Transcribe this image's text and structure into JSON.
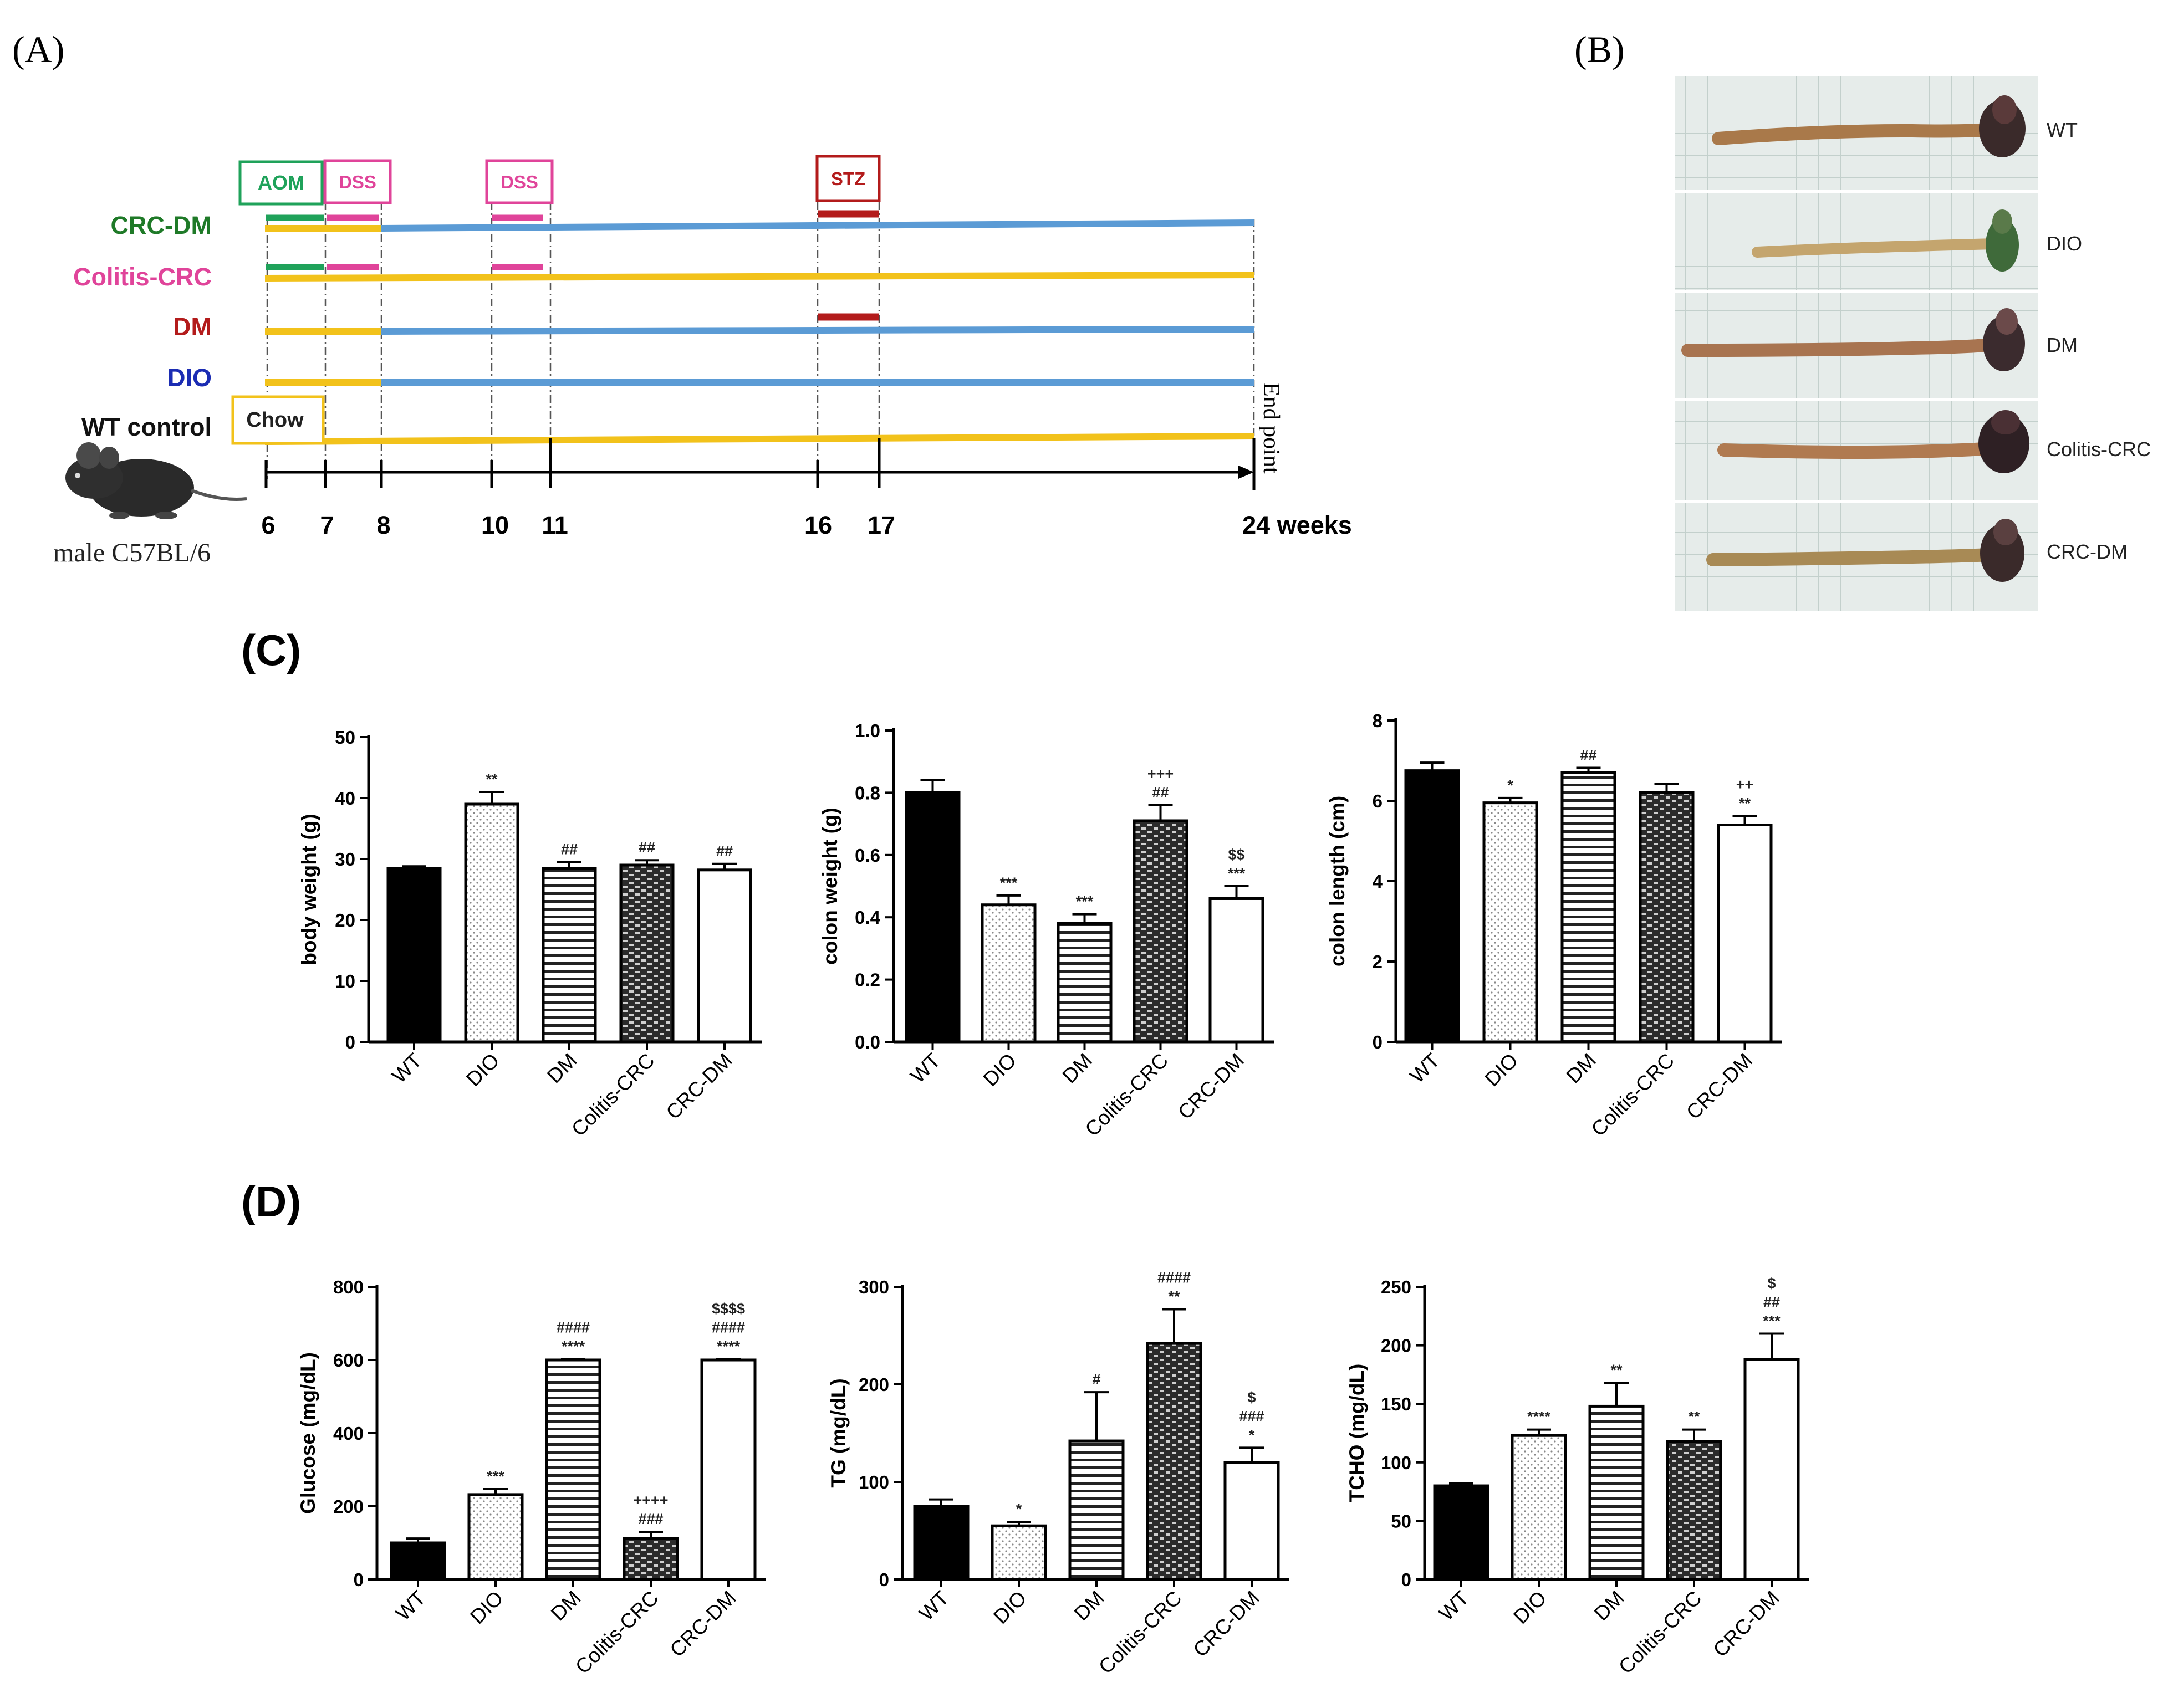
{
  "panel_labels": {
    "a": "(A)",
    "b": "(B)",
    "c": "(C)",
    "d": "(D)"
  },
  "timeline": {
    "weeks": [
      "6",
      "7",
      "8",
      "10",
      "11",
      "16",
      "17"
    ],
    "end_week": "24 weeks",
    "end_label": "End point",
    "mouse_label": "male C57BL/6",
    "groups": [
      {
        "name": "CRC-DM",
        "color": "#1f7a28"
      },
      {
        "name": "Colitis-CRC",
        "color": "#e0449a"
      },
      {
        "name": "DM",
        "color": "#b31b1b"
      },
      {
        "name": "DIO",
        "color": "#1b2cb3"
      },
      {
        "name": "WT control",
        "color": "#111111"
      }
    ],
    "treatments": {
      "aom": "AOM",
      "dss1": "DSS",
      "dss2": "DSS",
      "stz": "STZ",
      "chow": "Chow"
    },
    "colors": {
      "chow": "#f2c21b",
      "hfd": "#5b9bd5",
      "aom": "#1fa25a",
      "dss": "#e0449a",
      "stz": "#b31b1b"
    }
  },
  "photo_labels": [
    "WT",
    "DIO",
    "DM",
    "Colitis-CRC",
    "CRC-DM"
  ],
  "chart_data": [
    {
      "type": "bar",
      "panel": "C",
      "ylabel": "body weight (g)",
      "ylim": [
        0,
        50
      ],
      "ticks": [
        "0",
        "10",
        "20",
        "30",
        "40",
        "50"
      ],
      "categories": [
        "WT",
        "DIO",
        "DM",
        "Colitis-CRC",
        "CRC-DM"
      ],
      "values": [
        28.5,
        39,
        28.5,
        29,
        28.2
      ],
      "errors": [
        0.3,
        2,
        1,
        0.8,
        1
      ],
      "annotations": [
        [],
        [
          "**"
        ],
        [
          "##"
        ],
        [
          "##"
        ],
        [
          "##"
        ]
      ]
    },
    {
      "type": "bar",
      "panel": "C",
      "ylabel": "colon weight (g)",
      "ylim": [
        0,
        1.0
      ],
      "ticks": [
        "0.0",
        "0.2",
        "0.4",
        "0.6",
        "0.8",
        "1.0"
      ],
      "categories": [
        "WT",
        "DIO",
        "DM",
        "Colitis-CRC",
        "CRC-DM"
      ],
      "values": [
        0.8,
        0.44,
        0.38,
        0.71,
        0.46
      ],
      "errors": [
        0.04,
        0.03,
        0.03,
        0.05,
        0.04
      ],
      "annotations": [
        [],
        [
          "***"
        ],
        [
          "***"
        ],
        [
          "+++",
          "##"
        ],
        [
          "$$",
          "***"
        ]
      ]
    },
    {
      "type": "bar",
      "panel": "C",
      "ylabel": "colon length (cm)",
      "ylim": [
        0,
        8
      ],
      "ticks": [
        "0",
        "2",
        "4",
        "6",
        "8"
      ],
      "categories": [
        "WT",
        "DIO",
        "DM",
        "Colitis-CRC",
        "CRC-DM"
      ],
      "values": [
        6.75,
        5.95,
        6.7,
        6.2,
        5.4
      ],
      "errors": [
        0.2,
        0.12,
        0.12,
        0.22,
        0.22
      ],
      "annotations": [
        [],
        [
          "*"
        ],
        [
          "##"
        ],
        [],
        [
          "++",
          "**"
        ]
      ]
    },
    {
      "type": "bar",
      "panel": "D",
      "ylabel": "Glucose (mg/dL)",
      "ylim": [
        0,
        800
      ],
      "ticks": [
        "0",
        "200",
        "400",
        "600",
        "800"
      ],
      "categories": [
        "WT",
        "DIO",
        "DM",
        "Colitis-CRC",
        "CRC-DM"
      ],
      "values": [
        100,
        232,
        600,
        112,
        600
      ],
      "errors": [
        12,
        15,
        2,
        18,
        2
      ],
      "annotations": [
        [],
        [
          "***"
        ],
        [
          "####",
          "****"
        ],
        [
          "++++",
          "###"
        ],
        [
          "$$$$",
          "####",
          "****"
        ]
      ]
    },
    {
      "type": "bar",
      "panel": "D",
      "ylabel": "TG (mg/dL)",
      "ylim": [
        0,
        300
      ],
      "ticks": [
        "0",
        "100",
        "200",
        "300"
      ],
      "categories": [
        "WT",
        "DIO",
        "DM",
        "Colitis-CRC",
        "CRC-DM"
      ],
      "values": [
        75,
        55,
        142,
        242,
        120
      ],
      "errors": [
        7,
        4,
        50,
        35,
        15
      ],
      "annotations": [
        [],
        [
          "*"
        ],
        [
          "#"
        ],
        [
          "####",
          "**"
        ],
        [
          "$",
          "###",
          "*"
        ]
      ]
    },
    {
      "type": "bar",
      "panel": "D",
      "ylabel": "TCHO (mg/dL)",
      "ylim": [
        0,
        250
      ],
      "ticks": [
        "0",
        "50",
        "100",
        "150",
        "200",
        "250"
      ],
      "categories": [
        "WT",
        "DIO",
        "DM",
        "Colitis-CRC",
        "CRC-DM"
      ],
      "values": [
        80,
        123,
        148,
        118,
        188
      ],
      "errors": [
        2,
        5,
        20,
        10,
        22
      ],
      "annotations": [
        [],
        [
          "****"
        ],
        [
          "**"
        ],
        [
          "**"
        ],
        [
          "$",
          "##",
          "***"
        ]
      ]
    }
  ]
}
